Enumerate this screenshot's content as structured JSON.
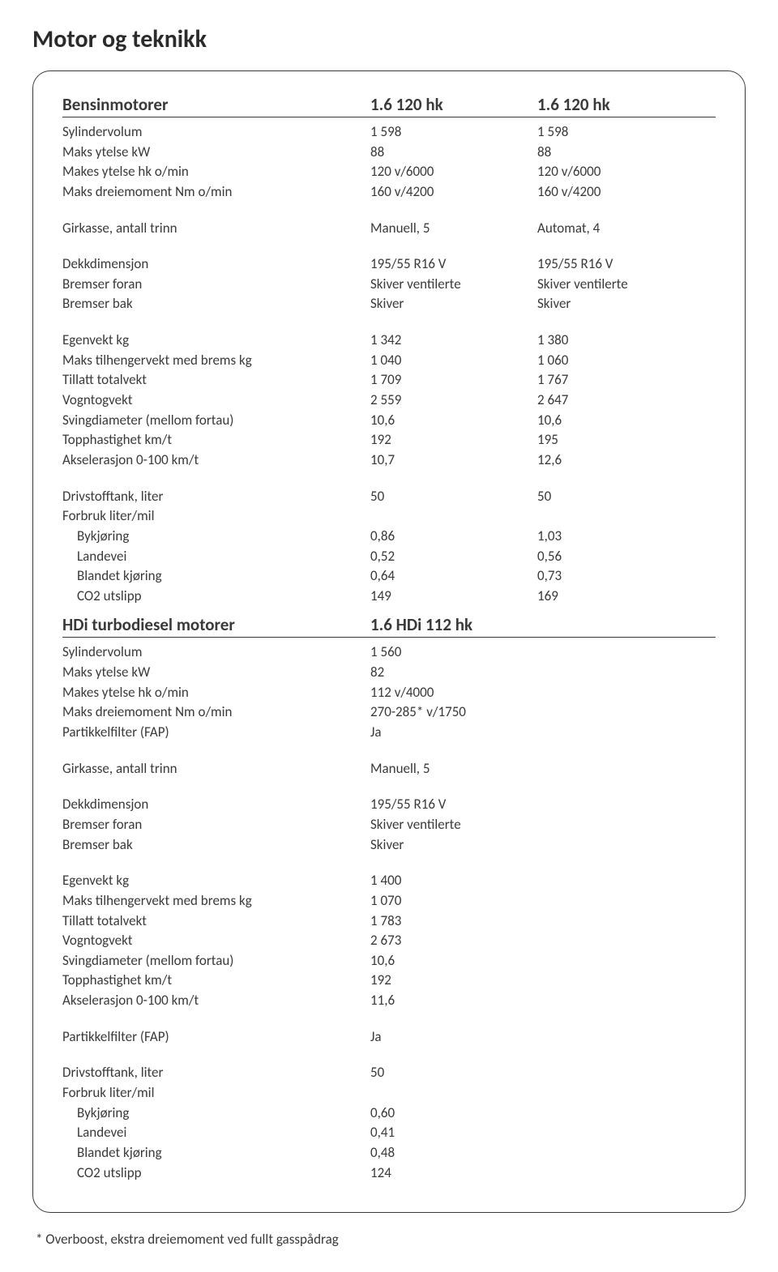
{
  "title": "Motor og teknikk",
  "bensin": {
    "header_label": "Bensinmotorer",
    "header_c1": "1.6 120 hk",
    "header_c2": "1.6 120 hk",
    "rows_block1": [
      {
        "label": "Sylindervolum",
        "c1": "1 598",
        "c2": "1 598"
      },
      {
        "label": "Maks ytelse kW",
        "c1": "88",
        "c2": "88"
      },
      {
        "label": "Makes ytelse hk o/min",
        "c1": "120 v/6000",
        "c2": "120 v/6000"
      },
      {
        "label": "Maks dreiemoment Nm o/min",
        "c1": "160 v/4200",
        "c2": "160 v/4200"
      }
    ],
    "rows_block2": [
      {
        "label": "Girkasse, antall trinn",
        "c1": "Manuell, 5",
        "c2": "Automat, 4"
      }
    ],
    "rows_block3": [
      {
        "label": "Dekkdimensjon",
        "c1": "195/55 R16 V",
        "c2": "195/55 R16 V"
      },
      {
        "label": "Bremser foran",
        "c1": "Skiver ventilerte",
        "c2": "Skiver ventilerte"
      },
      {
        "label": "Bremser bak",
        "c1": "Skiver",
        "c2": "Skiver"
      }
    ],
    "rows_block4": [
      {
        "label": "Egenvekt kg",
        "c1": "1 342",
        "c2": "1 380"
      },
      {
        "label": "Maks tilhengervekt med brems kg",
        "c1": "1 040",
        "c2": "1 060"
      },
      {
        "label": "Tillatt totalvekt",
        "c1": "1 709",
        "c2": "1 767"
      },
      {
        "label": "Vogntogvekt",
        "c1": "2 559",
        "c2": "2 647"
      },
      {
        "label": "Svingdiameter (mellom fortau)",
        "c1": "10,6",
        "c2": "10,6"
      },
      {
        "label": "Topphastighet km/t",
        "c1": "192",
        "c2": "195"
      },
      {
        "label": "Akselerasjon 0-100 km/t",
        "c1": "10,7",
        "c2": "12,6"
      }
    ],
    "rows_block5": [
      {
        "label": "Drivstofftank, liter",
        "c1": "50",
        "c2": "50"
      },
      {
        "label": "Forbruk liter/mil",
        "c1": "",
        "c2": ""
      }
    ],
    "rows_block5_indent": [
      {
        "label": "Bykjøring",
        "c1": "0,86",
        "c2": "1,03"
      },
      {
        "label": "Landevei",
        "c1": "0,52",
        "c2": "0,56"
      },
      {
        "label": "Blandet kjøring",
        "c1": "0,64",
        "c2": "0,73"
      },
      {
        "label": "CO2 utslipp",
        "c1": "149",
        "c2": "169"
      }
    ]
  },
  "hdi": {
    "header_label": "HDi turbodiesel motorer",
    "header_c1": "1.6 HDi 112 hk",
    "rows_block1": [
      {
        "label": "Sylindervolum",
        "c1": "1 560"
      },
      {
        "label": "Maks ytelse kW",
        "c1": "82"
      },
      {
        "label": "Makes ytelse hk o/min",
        "c1": "112 v/4000"
      },
      {
        "label": "Maks dreiemoment Nm o/min",
        "c1": "270-285* v/1750"
      },
      {
        "label": "Partikkelfilter (FAP)",
        "c1": "Ja"
      }
    ],
    "rows_block2": [
      {
        "label": "Girkasse, antall trinn",
        "c1": "Manuell, 5"
      }
    ],
    "rows_block3": [
      {
        "label": "Dekkdimensjon",
        "c1": "195/55 R16 V"
      },
      {
        "label": "Bremser foran",
        "c1": "Skiver ventilerte"
      },
      {
        "label": "Bremser bak",
        "c1": "Skiver"
      }
    ],
    "rows_block4": [
      {
        "label": "Egenvekt kg",
        "c1": "1 400"
      },
      {
        "label": "Maks tilhengervekt med brems kg",
        "c1": "1 070"
      },
      {
        "label": "Tillatt totalvekt",
        "c1": "1 783"
      },
      {
        "label": "Vogntogvekt",
        "c1": "2 673"
      },
      {
        "label": "Svingdiameter (mellom fortau)",
        "c1": "10,6"
      },
      {
        "label": "Topphastighet km/t",
        "c1": "192"
      },
      {
        "label": "Akselerasjon 0-100 km/t",
        "c1": "11,6"
      }
    ],
    "rows_block5": [
      {
        "label": "Partikkelfilter (FAP)",
        "c1": "Ja"
      }
    ],
    "rows_block6": [
      {
        "label": "Drivstofftank, liter",
        "c1": "50"
      },
      {
        "label": "Forbruk liter/mil",
        "c1": ""
      }
    ],
    "rows_block6_indent": [
      {
        "label": "Bykjøring",
        "c1": "0,60"
      },
      {
        "label": "Landevei",
        "c1": "0,41"
      },
      {
        "label": "Blandet kjøring",
        "c1": "0,48"
      },
      {
        "label": "CO2 utslipp",
        "c1": "124"
      }
    ]
  },
  "footnote": "* Overboost, ekstra dreiemoment ved fullt gasspådrag"
}
